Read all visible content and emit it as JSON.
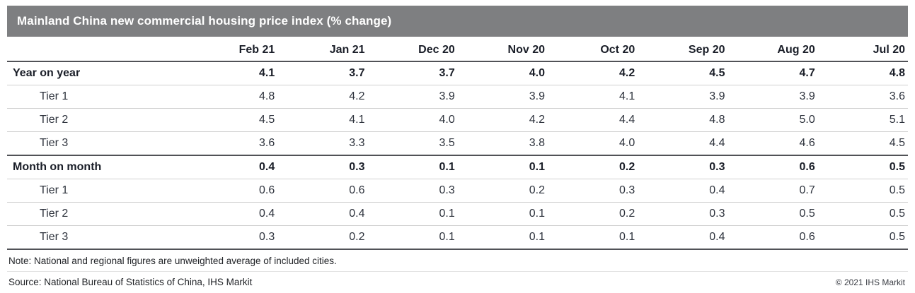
{
  "header": {
    "title": "Mainland China new commercial housing price index (% change)"
  },
  "colors": {
    "title_bar_bg": "#7e7f81",
    "title_text": "#ffffff",
    "rule_dark": "#515257",
    "rule_light": "#d0d0d0",
    "text_dark": "#1a1e28"
  },
  "chart_data": {
    "type": "table",
    "title": "Mainland China new commercial housing price index (% change)",
    "columns": [
      "Feb 21",
      "Jan 21",
      "Dec 20",
      "Nov 20",
      "Oct 20",
      "Sep 20",
      "Aug 20",
      "Jul 20"
    ],
    "rows": [
      {
        "label": "Year on year",
        "bold": true,
        "indent": false,
        "values": [
          "4.1",
          "3.7",
          "3.7",
          "4.0",
          "4.2",
          "4.5",
          "4.7",
          "4.8"
        ]
      },
      {
        "label": "Tier 1",
        "bold": false,
        "indent": true,
        "values": [
          "4.8",
          "4.2",
          "3.9",
          "3.9",
          "4.1",
          "3.9",
          "3.9",
          "3.6"
        ]
      },
      {
        "label": "Tier 2",
        "bold": false,
        "indent": true,
        "values": [
          "4.5",
          "4.1",
          "4.0",
          "4.2",
          "4.4",
          "4.8",
          "5.0",
          "5.1"
        ]
      },
      {
        "label": "Tier 3",
        "bold": false,
        "indent": true,
        "values": [
          "3.6",
          "3.3",
          "3.5",
          "3.8",
          "4.0",
          "4.4",
          "4.6",
          "4.5"
        ]
      },
      {
        "label": "Month on month",
        "bold": true,
        "indent": false,
        "values": [
          "0.4",
          "0.3",
          "0.1",
          "0.1",
          "0.2",
          "0.3",
          "0.6",
          "0.5"
        ]
      },
      {
        "label": "Tier 1",
        "bold": false,
        "indent": true,
        "values": [
          "0.6",
          "0.6",
          "0.3",
          "0.2",
          "0.3",
          "0.4",
          "0.7",
          "0.5"
        ]
      },
      {
        "label": "Tier 2",
        "bold": false,
        "indent": true,
        "values": [
          "0.4",
          "0.4",
          "0.1",
          "0.1",
          "0.2",
          "0.3",
          "0.5",
          "0.5"
        ]
      },
      {
        "label": "Tier 3",
        "bold": false,
        "indent": true,
        "values": [
          "0.3",
          "0.2",
          "0.1",
          "0.1",
          "0.1",
          "0.4",
          "0.6",
          "0.5"
        ]
      }
    ]
  },
  "footer": {
    "note": "Note: National and regional figures are unweighted average of included cities.",
    "source": "Source: National Bureau of Statistics of China, IHS Markit",
    "copyright": "© 2021 IHS Markit"
  }
}
